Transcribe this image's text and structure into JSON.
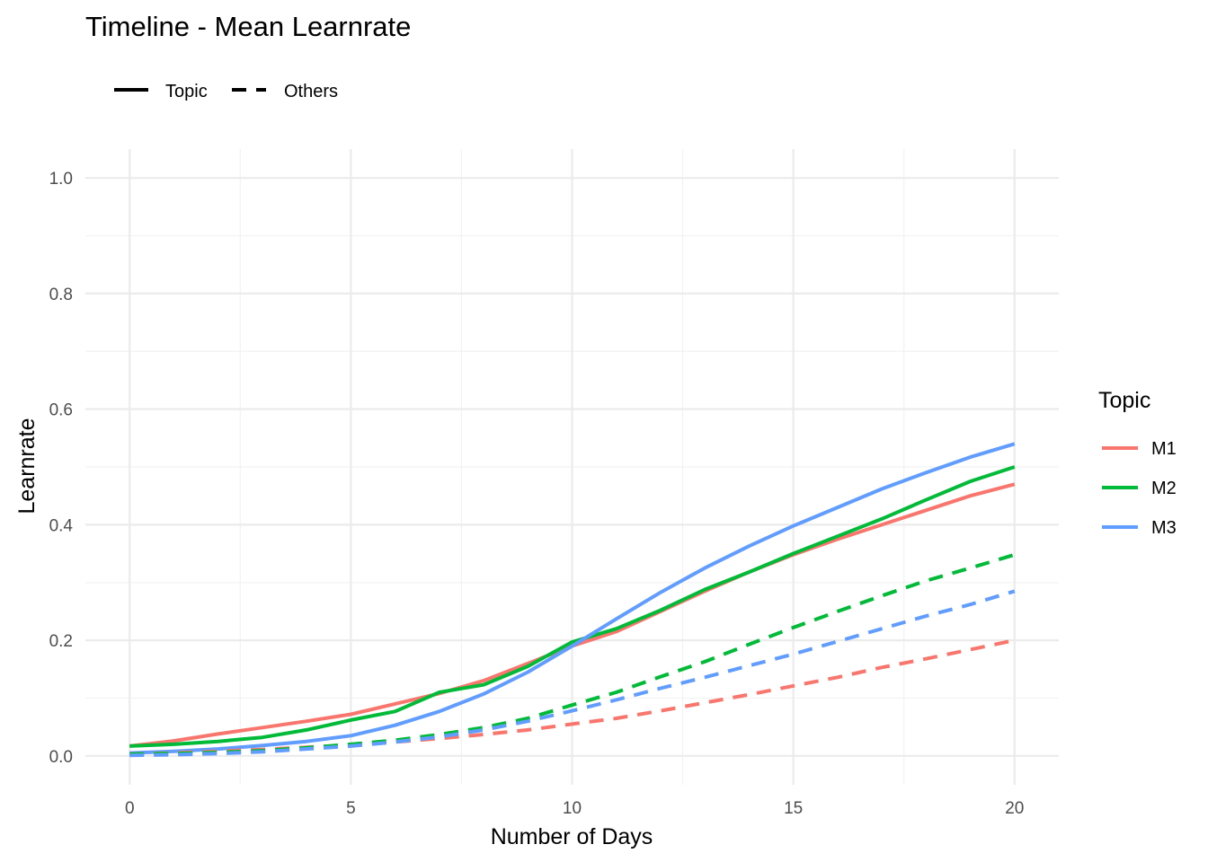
{
  "chart_data": {
    "type": "line",
    "title": "Timeline - Mean Learnrate",
    "xlabel": "Number of Days",
    "ylabel": "Learnrate",
    "xlim": [
      -1,
      21
    ],
    "ylim": [
      -0.05,
      1.05
    ],
    "xticks": [
      0,
      5,
      10,
      15,
      20
    ],
    "xtick_labels": [
      "0",
      "5",
      "10",
      "15",
      "20"
    ],
    "yticks": [
      0.0,
      0.2,
      0.4,
      0.6,
      0.8,
      1.0
    ],
    "ytick_labels": [
      "0.0",
      "0.2",
      "0.4",
      "0.6",
      "0.8",
      "1.0"
    ],
    "grid": true,
    "x": [
      0,
      1,
      2,
      3,
      4,
      5,
      6,
      7,
      8,
      9,
      10,
      11,
      12,
      13,
      14,
      15,
      16,
      17,
      18,
      19,
      20
    ],
    "linetype_legend": {
      "items": [
        {
          "label": "Topic",
          "dash": "solid"
        },
        {
          "label": "Others",
          "dash": "dashed"
        }
      ],
      "placement": "top-left"
    },
    "color_legend": {
      "title": "Topic",
      "placement": "right"
    },
    "series": [
      {
        "name": "M1",
        "color": "#F8766D",
        "linetype": "solid",
        "values": [
          0.017,
          0.026,
          0.038,
          0.049,
          0.06,
          0.072,
          0.09,
          0.108,
          0.13,
          0.16,
          0.19,
          0.215,
          0.25,
          0.285,
          0.318,
          0.348,
          0.375,
          0.4,
          0.425,
          0.45,
          0.47
        ]
      },
      {
        "name": "M2",
        "color": "#00BA38",
        "linetype": "solid",
        "values": [
          0.017,
          0.02,
          0.025,
          0.032,
          0.045,
          0.062,
          0.077,
          0.11,
          0.123,
          0.155,
          0.197,
          0.22,
          0.252,
          0.288,
          0.318,
          0.35,
          0.38,
          0.41,
          0.443,
          0.475,
          0.5
        ]
      },
      {
        "name": "M3",
        "color": "#619CFF",
        "linetype": "solid",
        "values": [
          0.005,
          0.008,
          0.012,
          0.018,
          0.025,
          0.035,
          0.053,
          0.077,
          0.107,
          0.145,
          0.19,
          0.237,
          0.283,
          0.325,
          0.363,
          0.398,
          0.43,
          0.462,
          0.49,
          0.517,
          0.54
        ]
      },
      {
        "name": "M1",
        "color": "#F8766D",
        "linetype": "dashed",
        "values": [
          0.003,
          0.005,
          0.008,
          0.011,
          0.015,
          0.019,
          0.024,
          0.03,
          0.037,
          0.045,
          0.055,
          0.065,
          0.078,
          0.092,
          0.106,
          0.121,
          0.136,
          0.153,
          0.168,
          0.184,
          0.2
        ]
      },
      {
        "name": "M2",
        "color": "#00BA38",
        "linetype": "dashed",
        "values": [
          0.003,
          0.004,
          0.006,
          0.009,
          0.014,
          0.02,
          0.027,
          0.037,
          0.049,
          0.065,
          0.088,
          0.11,
          0.137,
          0.163,
          0.193,
          0.222,
          0.25,
          0.277,
          0.303,
          0.325,
          0.348
        ]
      },
      {
        "name": "M3",
        "color": "#619CFF",
        "linetype": "dashed",
        "values": [
          0.001,
          0.002,
          0.004,
          0.007,
          0.012,
          0.017,
          0.024,
          0.033,
          0.045,
          0.06,
          0.078,
          0.097,
          0.117,
          0.136,
          0.156,
          0.176,
          0.198,
          0.22,
          0.242,
          0.262,
          0.285
        ]
      }
    ]
  }
}
